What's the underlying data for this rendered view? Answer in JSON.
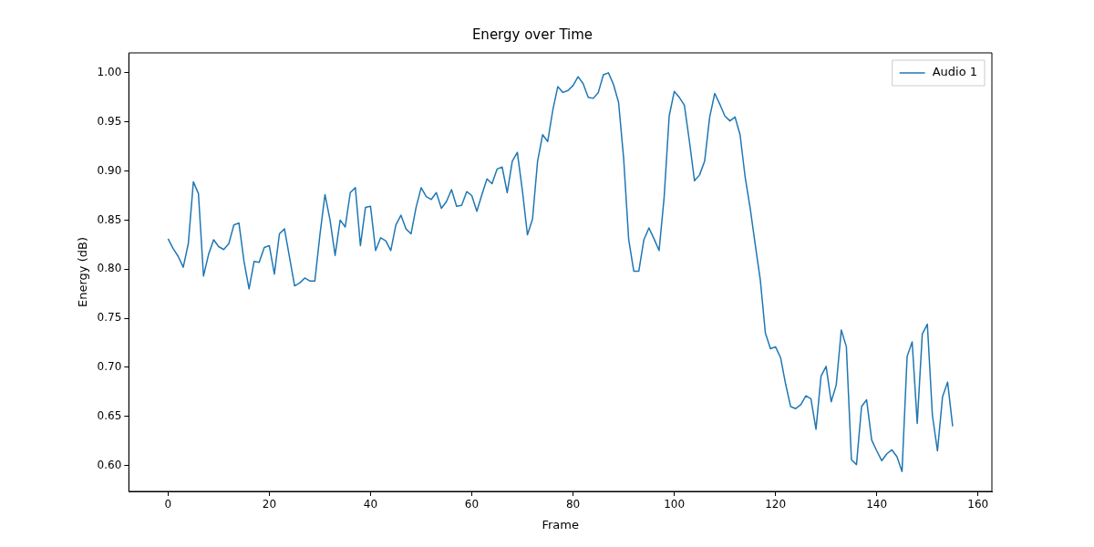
{
  "chart_data": {
    "type": "line",
    "title": "Energy over Time",
    "xlabel": "Frame",
    "ylabel": "Energy (dB)",
    "x": [
      0,
      1,
      2,
      3,
      4,
      5,
      6,
      7,
      8,
      9,
      10,
      11,
      12,
      13,
      14,
      15,
      16,
      17,
      18,
      19,
      20,
      21,
      22,
      23,
      24,
      25,
      26,
      27,
      28,
      29,
      30,
      31,
      32,
      33,
      34,
      35,
      36,
      37,
      38,
      39,
      40,
      41,
      42,
      43,
      44,
      45,
      46,
      47,
      48,
      49,
      50,
      51,
      52,
      53,
      54,
      55,
      56,
      57,
      58,
      59,
      60,
      61,
      62,
      63,
      64,
      65,
      66,
      67,
      68,
      69,
      70,
      71,
      72,
      73,
      74,
      75,
      76,
      77,
      78,
      79,
      80,
      81,
      82,
      83,
      84,
      85,
      86,
      87,
      88,
      89,
      90,
      91,
      92,
      93,
      94,
      95,
      96,
      97,
      98,
      99,
      100,
      101,
      102,
      103,
      104,
      105,
      106,
      107,
      108,
      109,
      110,
      111,
      112,
      113,
      114,
      115,
      116,
      117,
      118,
      119,
      120,
      121,
      122,
      123,
      124,
      125,
      126,
      127,
      128,
      129,
      130,
      131,
      132,
      133,
      134,
      135,
      136,
      137,
      138,
      139,
      140,
      141,
      142,
      143,
      144,
      145,
      146,
      147,
      148,
      149,
      150,
      151,
      152,
      153,
      154,
      155
    ],
    "series": [
      {
        "name": "Audio 1",
        "color": "#1f77b4",
        "values": [
          0.831,
          0.821,
          0.813,
          0.802,
          0.826,
          0.889,
          0.877,
          0.793,
          0.815,
          0.83,
          0.823,
          0.82,
          0.826,
          0.845,
          0.847,
          0.808,
          0.78,
          0.808,
          0.807,
          0.822,
          0.824,
          0.795,
          0.836,
          0.841,
          0.812,
          0.783,
          0.786,
          0.791,
          0.788,
          0.788,
          0.835,
          0.876,
          0.85,
          0.814,
          0.85,
          0.843,
          0.878,
          0.883,
          0.824,
          0.863,
          0.864,
          0.819,
          0.832,
          0.829,
          0.819,
          0.845,
          0.855,
          0.841,
          0.836,
          0.863,
          0.883,
          0.874,
          0.871,
          0.878,
          0.862,
          0.869,
          0.881,
          0.864,
          0.865,
          0.879,
          0.875,
          0.859,
          0.876,
          0.892,
          0.887,
          0.902,
          0.904,
          0.878,
          0.91,
          0.919,
          0.88,
          0.835,
          0.851,
          0.91,
          0.937,
          0.93,
          0.962,
          0.986,
          0.98,
          0.982,
          0.987,
          0.996,
          0.989,
          0.975,
          0.974,
          0.98,
          0.998,
          1.0,
          0.988,
          0.97,
          0.913,
          0.83,
          0.798,
          0.798,
          0.83,
          0.842,
          0.831,
          0.819,
          0.873,
          0.956,
          0.981,
          0.975,
          0.967,
          0.93,
          0.89,
          0.896,
          0.91,
          0.955,
          0.979,
          0.968,
          0.956,
          0.951,
          0.955,
          0.937,
          0.894,
          0.862,
          0.825,
          0.789,
          0.735,
          0.719,
          0.721,
          0.71,
          0.683,
          0.66,
          0.658,
          0.662,
          0.671,
          0.668,
          0.637,
          0.691,
          0.701,
          0.665,
          0.682,
          0.738,
          0.721,
          0.606,
          0.601,
          0.66,
          0.667,
          0.626,
          0.615,
          0.605,
          0.612,
          0.616,
          0.609,
          0.594,
          0.711,
          0.726,
          0.643,
          0.734,
          0.744,
          0.651,
          0.615,
          0.67,
          0.685,
          0.64
        ]
      }
    ],
    "xlim": [
      -7.75,
      162.75
    ],
    "xticks": [
      0,
      20,
      40,
      60,
      80,
      100,
      120,
      140,
      160
    ],
    "ylim": [
      0.5737,
      1.0203
    ],
    "yticks": [
      {
        "value": 0.6,
        "label": "0.60"
      },
      {
        "value": 0.65,
        "label": "0.65"
      },
      {
        "value": 0.7,
        "label": "0.70"
      },
      {
        "value": 0.75,
        "label": "0.75"
      },
      {
        "value": 0.8,
        "label": "0.80"
      },
      {
        "value": 0.85,
        "label": "0.85"
      },
      {
        "value": 0.9,
        "label": "0.90"
      },
      {
        "value": 0.95,
        "label": "0.95"
      },
      {
        "value": 1.0,
        "label": "1.00"
      }
    ],
    "legend": "top right",
    "line_style": "solid",
    "marker": "none"
  }
}
